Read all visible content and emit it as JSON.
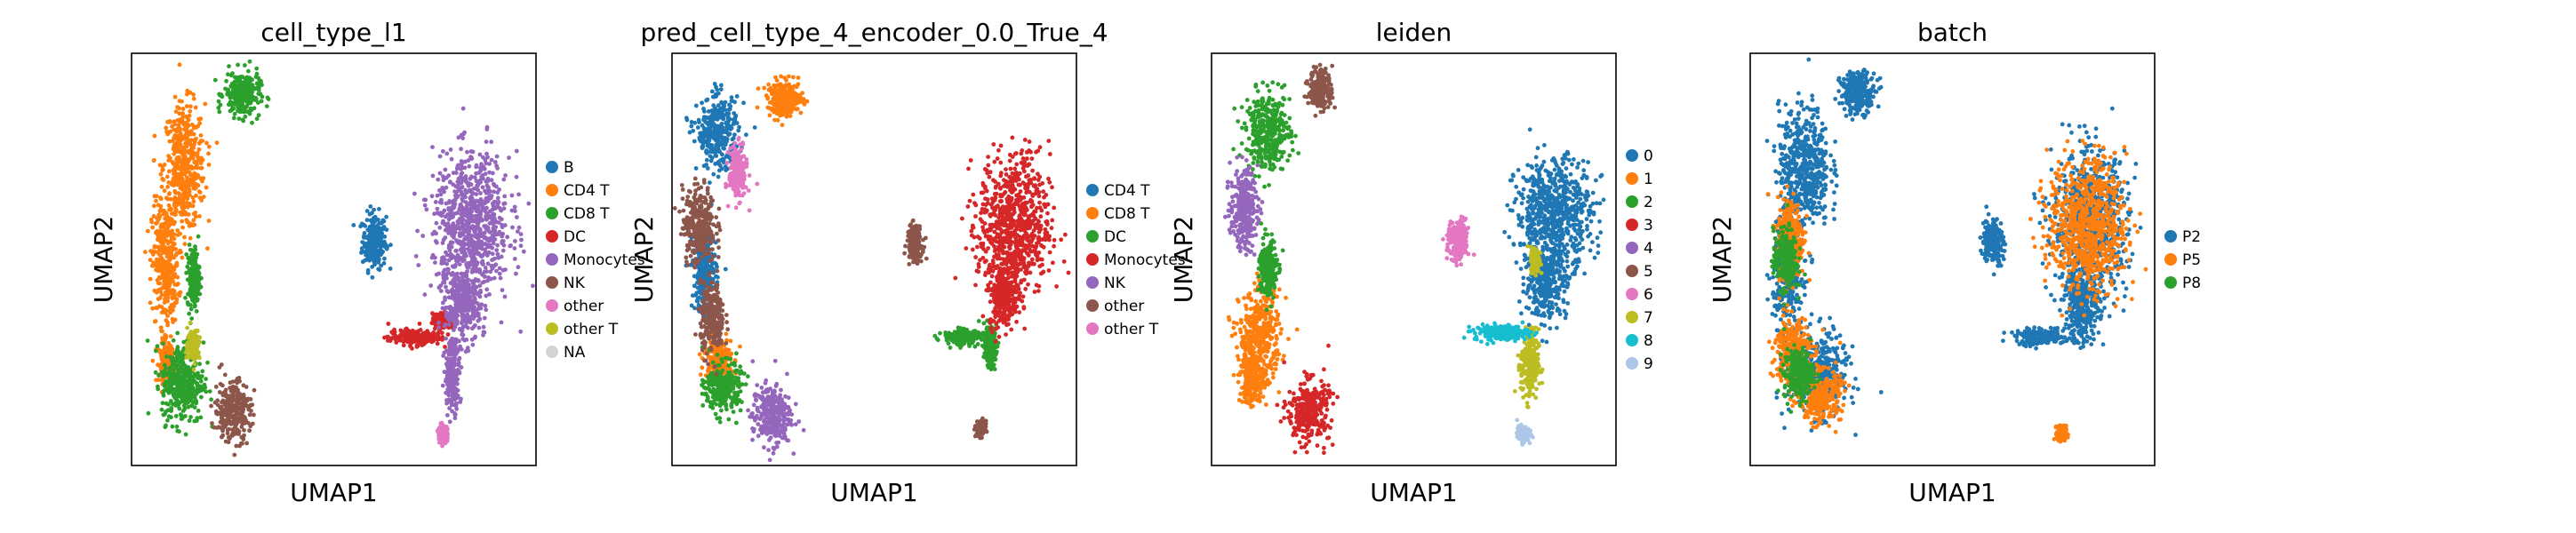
{
  "chart_data": [
    {
      "type": "scatter",
      "title": "cell_type_l1",
      "xlabel": "UMAP1",
      "ylabel": "UMAP2",
      "grid": false,
      "legend_position": "right",
      "series": [
        {
          "name": "B",
          "color": "#1f77b4",
          "clusters": [
            [
              18,
              8.8,
              0.8,
              1.1
            ]
          ]
        },
        {
          "name": "CD4 T",
          "color": "#ff7f0e",
          "clusters": [
            [
              3.9,
              12,
              1.4,
              2.5
            ],
            [
              2.5,
              7.8,
              0.9,
              2.4
            ],
            [
              2.6,
              3.5,
              0.5,
              0.8
            ]
          ]
        },
        {
          "name": "CD8 T",
          "color": "#2ca02c",
          "clusters": [
            [
              8.2,
              15.2,
              1.2,
              0.9
            ],
            [
              3.8,
              2.6,
              1.4,
              1.6
            ],
            [
              4.6,
              7.2,
              0.4,
              1.2
            ]
          ]
        },
        {
          "name": "DC",
          "color": "#d62728",
          "clusters": [
            [
              21,
              4.6,
              1.8,
              0.3
            ],
            [
              23,
              5.3,
              0.6,
              0.3
            ]
          ]
        },
        {
          "name": "Monocytes",
          "color": "#9467bd",
          "clusters": [
            [
              25.2,
              9.5,
              2.6,
              2.8
            ],
            [
              24.6,
              6.0,
              1.2,
              1.5
            ],
            [
              23.8,
              3.0,
              0.5,
              1.4
            ]
          ]
        },
        {
          "name": "NK",
          "color": "#8c564b",
          "clusters": [
            [
              7.5,
              1.4,
              1.2,
              1.2
            ]
          ]
        },
        {
          "name": "other",
          "color": "#e377c2",
          "clusters": [
            [
              23.1,
              0.4,
              0.3,
              0.3
            ]
          ]
        },
        {
          "name": "other T",
          "color": "#bcbd22",
          "clusters": [
            [
              4.6,
              4.3,
              0.4,
              0.6
            ]
          ]
        },
        {
          "name": "NA",
          "color": "#d3d3d3",
          "clusters": []
        }
      ]
    },
    {
      "type": "scatter",
      "title": "pred_cell_type_4_encoder_0.0_True_4",
      "xlabel": "UMAP1",
      "ylabel": "UMAP2",
      "grid": false,
      "legend_position": "right",
      "series": [
        {
          "name": "CD4 T",
          "color": "#1f77b4",
          "clusters": [
            [
              3.4,
              13.5,
              1.4,
              1.4
            ],
            [
              2.4,
              7.5,
              0.8,
              1.6
            ]
          ]
        },
        {
          "name": "CD8 T",
          "color": "#ff7f0e",
          "clusters": [
            [
              8.4,
              15.0,
              1.2,
              0.7
            ],
            [
              3.4,
              3.6,
              0.9,
              0.9
            ]
          ]
        },
        {
          "name": "DC",
          "color": "#2ca02c",
          "clusters": [
            [
              3.8,
              2.4,
              1.2,
              1.0
            ],
            [
              21.5,
              4.6,
              1.2,
              0.3
            ],
            [
              23.6,
              4.2,
              0.4,
              0.8
            ]
          ]
        },
        {
          "name": "Monocytes",
          "color": "#d62728",
          "clusters": [
            [
              25.4,
              9.5,
              2.4,
              2.8
            ],
            [
              24.6,
              6.4,
              1.0,
              1.2
            ]
          ]
        },
        {
          "name": "NK",
          "color": "#9467bd",
          "clusters": [
            [
              7.4,
              1.2,
              1.3,
              1.2
            ]
          ]
        },
        {
          "name": "other",
          "color": "#8c564b",
          "clusters": [
            [
              2.0,
              9.5,
              1.1,
              1.5
            ],
            [
              3.0,
              5.4,
              0.8,
              1.4
            ],
            [
              18.0,
              8.7,
              0.5,
              0.7
            ],
            [
              22.9,
              0.6,
              0.3,
              0.3
            ]
          ]
        },
        {
          "name": "other T",
          "color": "#e377c2",
          "clusters": [
            [
              4.9,
              11.8,
              0.6,
              1.0
            ]
          ]
        }
      ]
    },
    {
      "type": "scatter",
      "title": "leiden",
      "xlabel": "UMAP1",
      "ylabel": "UMAP2",
      "grid": false,
      "legend_position": "right",
      "series": [
        {
          "name": "0",
          "color": "#1f77b4",
          "clusters": [
            [
              25.4,
              10,
              2.6,
              2.2
            ],
            [
              24.8,
              7.0,
              1.4,
              1.4
            ]
          ]
        },
        {
          "name": "1",
          "color": "#ff7f0e",
          "clusters": [
            [
              3.6,
              4.6,
              1.4,
              1.8
            ],
            [
              3.0,
              2.8,
              0.8,
              1.0
            ]
          ]
        },
        {
          "name": "2",
          "color": "#2ca02c",
          "clusters": [
            [
              4.2,
              13.6,
              1.5,
              1.5
            ],
            [
              4.2,
              7.6,
              0.6,
              1.2
            ]
          ]
        },
        {
          "name": "3",
          "color": "#d62728",
          "clusters": [
            [
              7.2,
              1.4,
              1.4,
              1.2
            ]
          ]
        },
        {
          "name": "4",
          "color": "#9467bd",
          "clusters": [
            [
              2.4,
              10.2,
              0.9,
              1.6
            ]
          ]
        },
        {
          "name": "5",
          "color": "#8c564b",
          "clusters": [
            [
              8.1,
              15.4,
              0.8,
              0.8
            ]
          ]
        },
        {
          "name": "6",
          "color": "#e377c2",
          "clusters": [
            [
              18.3,
              8.8,
              0.7,
              0.8
            ]
          ]
        },
        {
          "name": "7",
          "color": "#bcbd22",
          "clusters": [
            [
              23.6,
              3.4,
              0.6,
              1.4
            ],
            [
              24.0,
              8.0,
              0.3,
              0.5
            ]
          ]
        },
        {
          "name": "8",
          "color": "#17becf",
          "clusters": [
            [
              21.5,
              4.8,
              1.8,
              0.3
            ]
          ]
        },
        {
          "name": "9",
          "color": "#aec7e8",
          "clusters": [
            [
              23.1,
              0.4,
              0.4,
              0.3
            ]
          ]
        }
      ]
    },
    {
      "type": "scatter",
      "title": "batch",
      "xlabel": "UMAP1",
      "ylabel": "UMAP2",
      "grid": false,
      "legend_position": "right",
      "series": [
        {
          "name": "P2",
          "color": "#1f77b4",
          "clusters": [
            [
              4.0,
              12,
              1.7,
              2.4
            ],
            [
              2.8,
              7.5,
              1.0,
              2.0
            ],
            [
              5.0,
              3.0,
              2.0,
              1.6
            ],
            [
              8.0,
              15.3,
              1.2,
              0.8
            ],
            [
              18,
              8.8,
              0.7,
              0.9
            ],
            [
              25.2,
              9.5,
              2.5,
              2.8
            ],
            [
              24.6,
              6.0,
              1.2,
              1.5
            ],
            [
              21.5,
              4.6,
              1.6,
              0.3
            ]
          ]
        },
        {
          "name": "P5",
          "color": "#ff7f0e",
          "clusters": [
            [
              3.2,
              4.0,
              1.2,
              1.4
            ],
            [
              5.2,
              2.0,
              1.4,
              1.0
            ],
            [
              25.0,
              9.5,
              2.6,
              2.6
            ],
            [
              23.1,
              0.4,
              0.3,
              0.3
            ],
            [
              3.0,
              9.0,
              0.9,
              1.6
            ]
          ]
        },
        {
          "name": "P8",
          "color": "#2ca02c",
          "clusters": [
            [
              3.6,
              3.0,
              1.0,
              1.0
            ],
            [
              2.6,
              8.0,
              0.8,
              1.2
            ]
          ]
        }
      ]
    }
  ]
}
